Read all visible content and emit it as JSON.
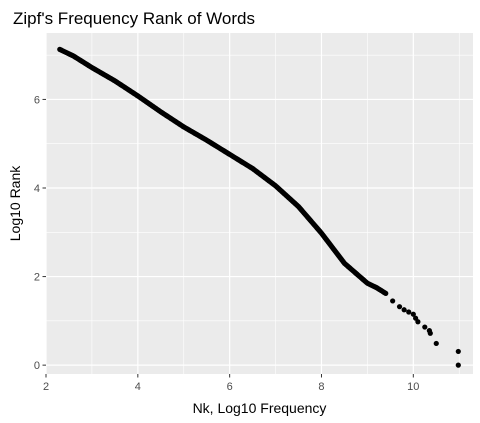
{
  "chart_data": {
    "type": "scatter",
    "title": "Zipf's Frequency Rank of Words",
    "xlabel": "Nk, Log10 Frequency",
    "ylabel": "Log10 Rank",
    "xlim": [
      2.0,
      11.3
    ],
    "ylim": [
      -0.2,
      7.5
    ],
    "x_ticks": [
      2,
      4,
      6,
      8,
      10
    ],
    "y_ticks": [
      0,
      2,
      4,
      6
    ],
    "grid": true,
    "legend": "none",
    "point_color": "#000000",
    "panel_background": "#ebebeb",
    "grid_color": "#ffffff",
    "curve": [
      {
        "x": 2.3,
        "y": 7.13
      },
      {
        "x": 2.6,
        "y": 6.98
      },
      {
        "x": 3.0,
        "y": 6.72
      },
      {
        "x": 3.5,
        "y": 6.42
      },
      {
        "x": 4.0,
        "y": 6.08
      },
      {
        "x": 4.5,
        "y": 5.72
      },
      {
        "x": 5.0,
        "y": 5.38
      },
      {
        "x": 5.5,
        "y": 5.08
      },
      {
        "x": 6.0,
        "y": 4.76
      },
      {
        "x": 6.5,
        "y": 4.44
      },
      {
        "x": 7.0,
        "y": 4.05
      },
      {
        "x": 7.5,
        "y": 3.58
      },
      {
        "x": 8.0,
        "y": 2.98
      },
      {
        "x": 8.5,
        "y": 2.3
      },
      {
        "x": 9.0,
        "y": 1.85
      },
      {
        "x": 9.2,
        "y": 1.75
      },
      {
        "x": 9.4,
        "y": 1.62
      }
    ],
    "tail_points": [
      {
        "x": 9.55,
        "y": 1.45
      },
      {
        "x": 9.7,
        "y": 1.32
      },
      {
        "x": 9.8,
        "y": 1.25
      },
      {
        "x": 9.9,
        "y": 1.2
      },
      {
        "x": 10.0,
        "y": 1.15
      },
      {
        "x": 10.05,
        "y": 1.06
      },
      {
        "x": 10.1,
        "y": 0.98
      },
      {
        "x": 10.25,
        "y": 0.86
      },
      {
        "x": 10.35,
        "y": 0.78
      },
      {
        "x": 10.37,
        "y": 0.72
      },
      {
        "x": 10.5,
        "y": 0.49
      },
      {
        "x": 10.98,
        "y": 0.31
      },
      {
        "x": 10.98,
        "y": 0.0
      }
    ]
  }
}
